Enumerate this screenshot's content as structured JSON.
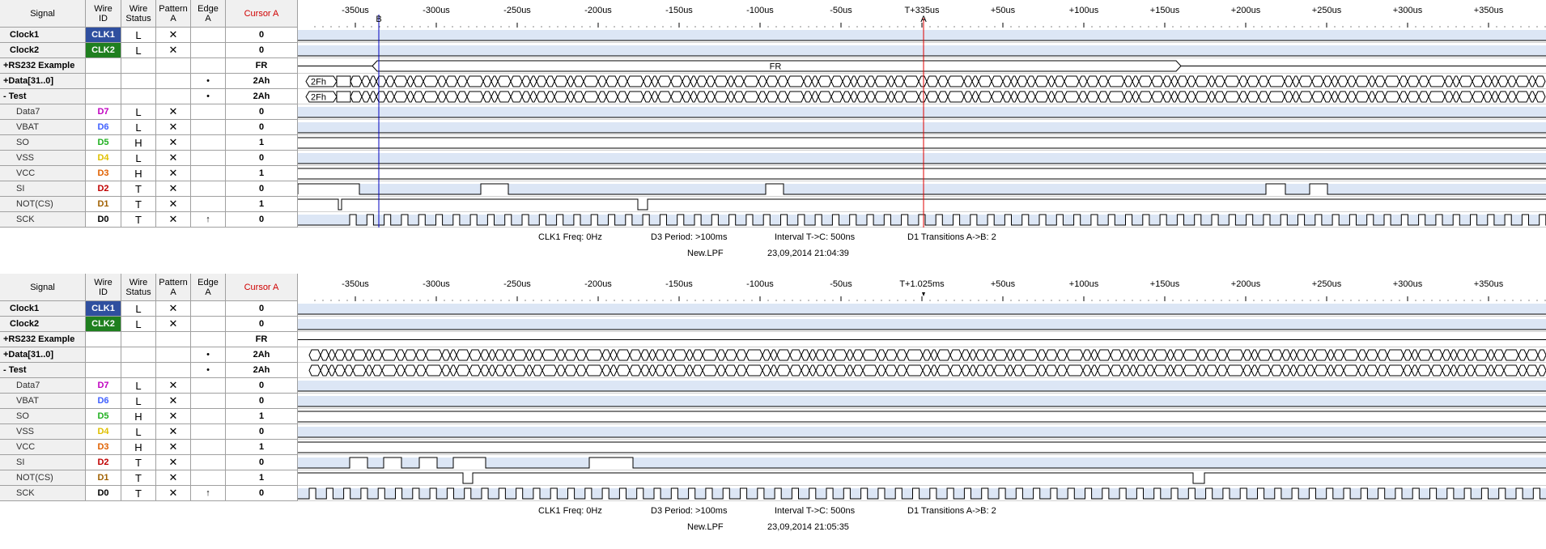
{
  "headers": {
    "signal": "Signal",
    "wire_id": "Wire\nID",
    "wire_status": "Wire\nStatus",
    "pattern": "Pattern\nA",
    "edge": "Edge\nA",
    "cursor": "Cursor A"
  },
  "colors": {
    "clk1_badge": "#2f4f9f",
    "clk2_badge": "#1f7f1f",
    "D7": "#c000c0",
    "D6": "#4060ff",
    "D5": "#20b020",
    "D4": "#e0c000",
    "D3": "#e06000",
    "D2": "#c00000",
    "D1": "#a06000",
    "D0": "#000000",
    "band": "#dce6f5",
    "cursorA": "#e00000",
    "cursorB": "#0000c0"
  },
  "ruler_labels": [
    "-350us",
    "-300us",
    "-250us",
    "-200us",
    "-150us",
    "-100us",
    "-50us",
    "",
    "+50us",
    "+100us",
    "+150us",
    "+200us",
    "+250us",
    "+300us",
    "+350us"
  ],
  "panels": [
    {
      "ruler_center": "T+335us",
      "cursor_a_marker": "A",
      "cursor_b_marker": "B",
      "bus_label": "FR",
      "data_first_label": "2Fh",
      "test_first_label": "2Fh",
      "rows": [
        {
          "signal": "Clock1",
          "wire": "CLK1",
          "status": "L",
          "pattern": "✕",
          "edge": "",
          "value": "0"
        },
        {
          "signal": "Clock2",
          "wire": "CLK2",
          "status": "L",
          "pattern": "✕",
          "edge": "",
          "value": "0"
        },
        {
          "signal": "+RS232 Example",
          "wire": "",
          "status": "",
          "pattern": "",
          "edge": "",
          "value": "FR"
        },
        {
          "signal": "+Data[31..0]",
          "wire": "",
          "status": "",
          "pattern": "",
          "edge": "•",
          "value": "2Ah"
        },
        {
          "signal": "- Test",
          "wire": "",
          "status": "",
          "pattern": "",
          "edge": "•",
          "value": "2Ah"
        },
        {
          "signal": "Data7",
          "wire": "D7",
          "status": "L",
          "pattern": "✕",
          "edge": "",
          "value": "0"
        },
        {
          "signal": "VBAT",
          "wire": "D6",
          "status": "L",
          "pattern": "✕",
          "edge": "",
          "value": "0"
        },
        {
          "signal": "SO",
          "wire": "D5",
          "status": "H",
          "pattern": "✕",
          "edge": "",
          "value": "1"
        },
        {
          "signal": "VSS",
          "wire": "D4",
          "status": "L",
          "pattern": "✕",
          "edge": "",
          "value": "0"
        },
        {
          "signal": "VCC",
          "wire": "D3",
          "status": "H",
          "pattern": "✕",
          "edge": "",
          "value": "1"
        },
        {
          "signal": "SI",
          "wire": "D2",
          "status": "T",
          "pattern": "✕",
          "edge": "",
          "value": "0"
        },
        {
          "signal": "NOT(CS)",
          "wire": "D1",
          "status": "T",
          "pattern": "✕",
          "edge": "",
          "value": "1"
        },
        {
          "signal": "SCK",
          "wire": "D0",
          "status": "T",
          "pattern": "✕",
          "edge": "↑",
          "value": "0"
        }
      ],
      "status": {
        "freq": "CLK1 Freq: 0Hz",
        "period": "D3 Period: >100ms",
        "interval": "Interval T->C: 500ns",
        "transitions": "D1 Transitions A->B: 2",
        "file": "New.LPF",
        "timestamp": "23,09,2014 21:04:39"
      }
    },
    {
      "ruler_center": "T+1.025ms",
      "cursor_a_marker": "",
      "cursor_b_marker": "",
      "bus_label": "",
      "data_first_label": "",
      "test_first_label": "",
      "rows": [
        {
          "signal": "Clock1",
          "wire": "CLK1",
          "status": "L",
          "pattern": "✕",
          "edge": "",
          "value": "0"
        },
        {
          "signal": "Clock2",
          "wire": "CLK2",
          "status": "L",
          "pattern": "✕",
          "edge": "",
          "value": "0"
        },
        {
          "signal": "+RS232 Example",
          "wire": "",
          "status": "",
          "pattern": "",
          "edge": "",
          "value": "FR"
        },
        {
          "signal": "+Data[31..0]",
          "wire": "",
          "status": "",
          "pattern": "",
          "edge": "•",
          "value": "2Ah"
        },
        {
          "signal": "- Test",
          "wire": "",
          "status": "",
          "pattern": "",
          "edge": "•",
          "value": "2Ah"
        },
        {
          "signal": "Data7",
          "wire": "D7",
          "status": "L",
          "pattern": "✕",
          "edge": "",
          "value": "0"
        },
        {
          "signal": "VBAT",
          "wire": "D6",
          "status": "L",
          "pattern": "✕",
          "edge": "",
          "value": "0"
        },
        {
          "signal": "SO",
          "wire": "D5",
          "status": "H",
          "pattern": "✕",
          "edge": "",
          "value": "1"
        },
        {
          "signal": "VSS",
          "wire": "D4",
          "status": "L",
          "pattern": "✕",
          "edge": "",
          "value": "0"
        },
        {
          "signal": "VCC",
          "wire": "D3",
          "status": "H",
          "pattern": "✕",
          "edge": "",
          "value": "1"
        },
        {
          "signal": "SI",
          "wire": "D2",
          "status": "T",
          "pattern": "✕",
          "edge": "",
          "value": "0"
        },
        {
          "signal": "NOT(CS)",
          "wire": "D1",
          "status": "T",
          "pattern": "✕",
          "edge": "",
          "value": "1"
        },
        {
          "signal": "SCK",
          "wire": "D0",
          "status": "T",
          "pattern": "✕",
          "edge": "↑",
          "value": "0"
        }
      ],
      "status": {
        "freq": "CLK1 Freq: 0Hz",
        "period": "D3 Period: >100ms",
        "interval": "Interval T->C: 500ns",
        "transitions": "D1 Transitions A->B: 2",
        "file": "New.LPF",
        "timestamp": "23,09,2014 21:05:35"
      }
    }
  ]
}
